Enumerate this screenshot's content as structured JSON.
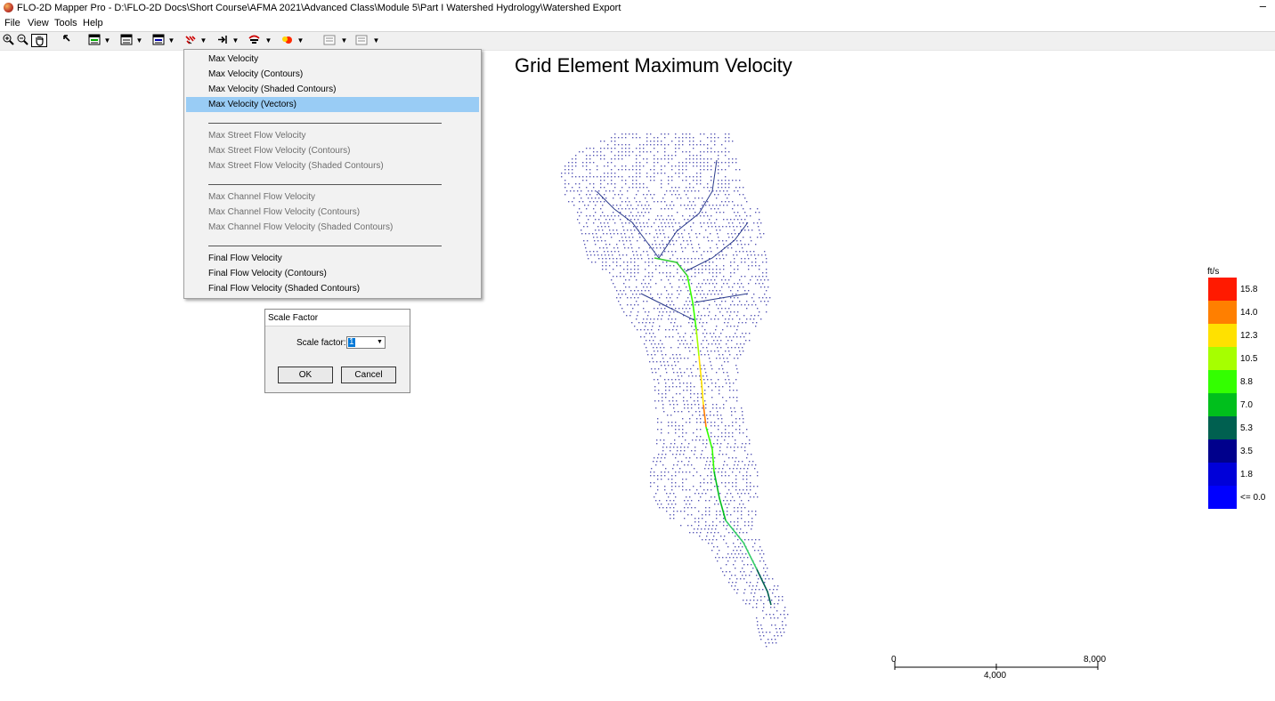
{
  "window": {
    "title": "FLO-2D Mapper Pro - D:\\FLO-2D Docs\\Short Course\\AFMA 2021\\Advanced Class\\Module 5\\Part I Watershed Hydrology\\Watershed Export",
    "minimize_glyph": "–"
  },
  "menu": [
    "File",
    "View",
    "Tools",
    "Help"
  ],
  "toolbar": {
    "icons": [
      "zoom-in-icon",
      "zoom-out-icon",
      "pan-hand-icon",
      "pointer-icon",
      "grid-element-icon",
      "ground-icon",
      "depth-icon",
      "velocity-icon",
      "export-arrow-icon",
      "hazard-icon",
      "color-icon",
      "compare-icon",
      "compare-2-icon"
    ]
  },
  "dropdown": {
    "items": [
      {
        "label": "Max Velocity",
        "enabled": true
      },
      {
        "label": "Max Velocity (Contours)",
        "enabled": true
      },
      {
        "label": "Max Velocity (Shaded Contours)",
        "enabled": true
      },
      {
        "label": "Max Velocity (Vectors)",
        "enabled": true,
        "selected": true
      },
      {
        "label": "Max Street Flow Velocity",
        "enabled": false
      },
      {
        "label": "Max Street Flow Velocity (Contours)",
        "enabled": false
      },
      {
        "label": "Max Street Flow Velocity (Shaded Contours)",
        "enabled": false
      },
      {
        "label": "Max Channel Flow Velocity",
        "enabled": false
      },
      {
        "label": "Max Channel Flow Velocity (Contours)",
        "enabled": false
      },
      {
        "label": "Max Channel Flow Velocity (Shaded Contours)",
        "enabled": false
      },
      {
        "label": "Final Flow Velocity",
        "enabled": true
      },
      {
        "label": "Final Flow Velocity (Contours)",
        "enabled": true
      },
      {
        "label": "Final Flow Velocity (Shaded Contours)",
        "enabled": true
      }
    ]
  },
  "dialog": {
    "title": "Scale Factor",
    "label": "Scale factor:",
    "value": "1",
    "ok_label": "OK",
    "cancel_label": "Cancel"
  },
  "map": {
    "title": "Grid Element Maximum Velocity"
  },
  "legend": {
    "unit": "ft/s",
    "entries": [
      {
        "label": "15.8",
        "color": "#ff1a00"
      },
      {
        "label": "14.0",
        "color": "#ff7f00"
      },
      {
        "label": "12.3",
        "color": "#ffe100"
      },
      {
        "label": "10.5",
        "color": "#a6ff00"
      },
      {
        "label": "8.8",
        "color": "#33ff00"
      },
      {
        "label": "7.0",
        "color": "#00bf1c"
      },
      {
        "label": "5.3",
        "color": "#006050"
      },
      {
        "label": "3.5",
        "color": "#00008c"
      },
      {
        "label": "1.8",
        "color": "#0000d9"
      },
      {
        "label": "<= 0.0",
        "color": "#0000ff"
      }
    ]
  },
  "scalebar": {
    "labels": [
      "0",
      "4,000",
      "8,000"
    ]
  }
}
